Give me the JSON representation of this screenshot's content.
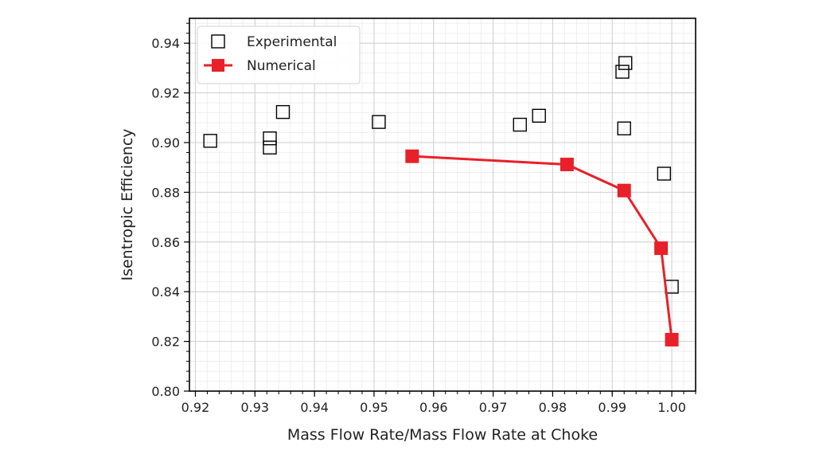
{
  "chart_data": {
    "type": "scatter",
    "xlabel": "Mass Flow Rate/Mass Flow Rate at Choke",
    "ylabel": "Isentropic Efficiency",
    "xlim": [
      0.919,
      1.004
    ],
    "ylim": [
      0.8,
      0.95
    ],
    "x_ticks": [
      0.92,
      0.93,
      0.94,
      0.95,
      0.96,
      0.97,
      0.98,
      0.99,
      1.0
    ],
    "x_tick_labels": [
      "0.92",
      "0.93",
      "0.94",
      "0.95",
      "0.96",
      "0.97",
      "0.98",
      "0.99",
      "1.00"
    ],
    "y_ticks": [
      0.8,
      0.82,
      0.84,
      0.86,
      0.88,
      0.9,
      0.92,
      0.94
    ],
    "y_tick_labels": [
      "0.80",
      "0.82",
      "0.84",
      "0.86",
      "0.88",
      "0.90",
      "0.92",
      "0.94"
    ],
    "grid": true,
    "minor_grid": true,
    "legend_position": "top-left",
    "series": [
      {
        "name": "Experimental",
        "style": "hollow-square",
        "color": "#000000",
        "x": [
          0.9225,
          0.9325,
          0.9325,
          0.9347,
          0.9508,
          0.9745,
          0.9777,
          0.9917,
          0.9922,
          0.992,
          0.9987,
          1.0
        ],
        "y": [
          0.9007,
          0.9017,
          0.898,
          0.9123,
          0.9083,
          0.9072,
          0.9108,
          0.9285,
          0.932,
          0.9057,
          0.8875,
          0.842
        ]
      },
      {
        "name": "Numerical",
        "style": "line-filled-square",
        "color": "#e8202a",
        "x": [
          0.9564,
          0.9824,
          0.992,
          0.9982,
          1.0
        ],
        "y": [
          0.8945,
          0.8912,
          0.8807,
          0.8575,
          0.8207
        ]
      }
    ]
  }
}
